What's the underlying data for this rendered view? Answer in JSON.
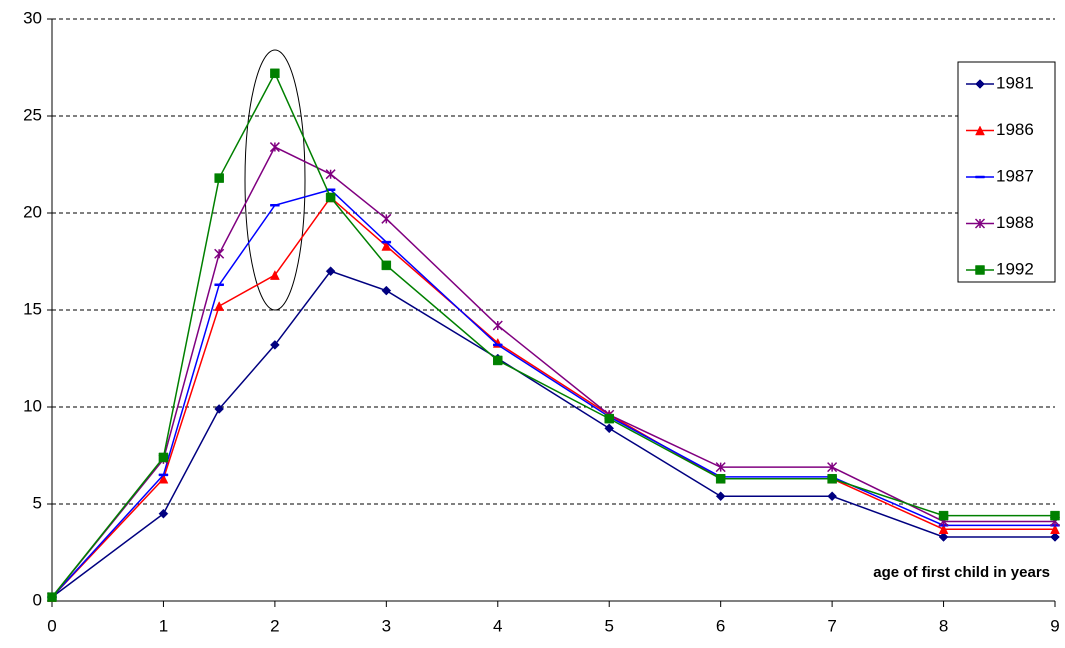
{
  "chart_data": {
    "type": "line",
    "annotation": "age of first child in years",
    "x": [
      0,
      1,
      1.5,
      2,
      2.5,
      3,
      4,
      5,
      6,
      7,
      8,
      9
    ],
    "series": [
      {
        "name": "1981",
        "color": "#000080",
        "marker": "diamond",
        "values": [
          0.2,
          4.5,
          9.9,
          13.2,
          17.0,
          16.0,
          12.5,
          8.9,
          5.4,
          5.4,
          3.3,
          3.3
        ]
      },
      {
        "name": "1986",
        "color": "#ff0000",
        "marker": "triangle",
        "values": [
          0.2,
          6.3,
          15.2,
          16.8,
          20.8,
          18.3,
          13.3,
          9.6,
          6.3,
          6.3,
          3.7,
          3.7
        ]
      },
      {
        "name": "1987",
        "color": "#0000ff",
        "marker": "dash",
        "values": [
          0.2,
          6.5,
          16.3,
          20.4,
          21.2,
          18.5,
          13.2,
          9.5,
          6.4,
          6.4,
          3.9,
          3.9
        ]
      },
      {
        "name": "1988",
        "color": "#800080",
        "marker": "star",
        "values": [
          0.2,
          7.3,
          17.9,
          23.4,
          22.0,
          19.7,
          14.2,
          9.6,
          6.9,
          6.9,
          4.1,
          4.1
        ]
      },
      {
        "name": "1992",
        "color": "#008000",
        "marker": "square",
        "values": [
          0.2,
          7.4,
          21.8,
          27.2,
          20.8,
          17.3,
          12.4,
          9.4,
          6.3,
          6.3,
          4.4,
          4.4
        ]
      }
    ],
    "xlim": [
      0,
      9
    ],
    "xticks": [
      0,
      1,
      2,
      3,
      4,
      5,
      6,
      7,
      8,
      9
    ],
    "ylim": [
      0,
      30
    ],
    "yticks": [
      0,
      5,
      10,
      15,
      20,
      25,
      30
    ],
    "grid": true,
    "legend": "upper right"
  }
}
